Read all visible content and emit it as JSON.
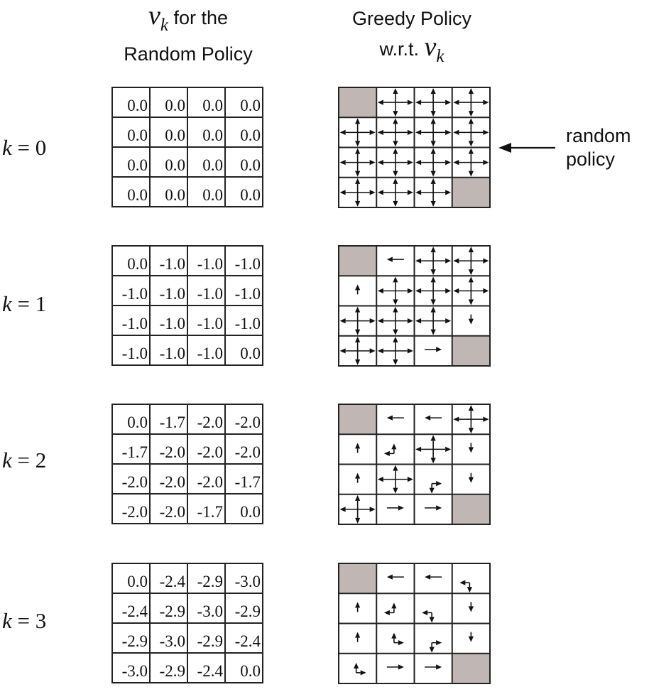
{
  "headers": {
    "left_symbol": "v",
    "left_subscript": "k",
    "left_line1": " for the",
    "left_line2": "Random Policy",
    "right_line1": "Greedy Policy",
    "right_line2": "w.r.t. ",
    "right_symbol": "v",
    "right_subscript": "k"
  },
  "note": {
    "line1": "random",
    "line2": "policy"
  },
  "colors": {
    "terminal": "#c0b7b5",
    "lines": "#222222"
  },
  "panels": [
    {
      "k_label": "k",
      "k_eq": " = 0",
      "values": [
        [
          "0.0",
          "0.0",
          "0.0",
          "0.0"
        ],
        [
          "0.0",
          "0.0",
          "0.0",
          "0.0"
        ],
        [
          "0.0",
          "0.0",
          "0.0",
          "0.0"
        ],
        [
          "0.0",
          "0.0",
          "0.0",
          "0.0"
        ]
      ],
      "policy": [
        [
          "T",
          "NESW",
          "NESW",
          "NESW"
        ],
        [
          "NESW",
          "NESW",
          "NESW",
          "NESW"
        ],
        [
          "NESW",
          "NESW",
          "NESW",
          "NESW"
        ],
        [
          "NESW",
          "NESW",
          "NESW",
          "T"
        ]
      ]
    },
    {
      "k_label": "k",
      "k_eq": " = 1",
      "values": [
        [
          "0.0",
          "-1.0",
          "-1.0",
          "-1.0"
        ],
        [
          "-1.0",
          "-1.0",
          "-1.0",
          "-1.0"
        ],
        [
          "-1.0",
          "-1.0",
          "-1.0",
          "-1.0"
        ],
        [
          "-1.0",
          "-1.0",
          "-1.0",
          "0.0"
        ]
      ],
      "policy": [
        [
          "T",
          "W",
          "NESW",
          "NESW"
        ],
        [
          "N",
          "NESW",
          "NESW",
          "NESW"
        ],
        [
          "NESW",
          "NESW",
          "NESW",
          "S"
        ],
        [
          "NESW",
          "NESW",
          "E",
          "T"
        ]
      ]
    },
    {
      "k_label": "k",
      "k_eq": " = 2",
      "values": [
        [
          "0.0",
          "-1.7",
          "-2.0",
          "-2.0"
        ],
        [
          "-1.7",
          "-2.0",
          "-2.0",
          "-2.0"
        ],
        [
          "-2.0",
          "-2.0",
          "-2.0",
          "-1.7"
        ],
        [
          "-2.0",
          "-2.0",
          "-1.7",
          "0.0"
        ]
      ],
      "policy": [
        [
          "T",
          "W",
          "W",
          "NESW"
        ],
        [
          "N",
          "NW",
          "NESW",
          "S"
        ],
        [
          "N",
          "NESW",
          "ES",
          "S"
        ],
        [
          "NESW",
          "E",
          "E",
          "T"
        ]
      ]
    },
    {
      "k_label": "k",
      "k_eq": " = 3",
      "values": [
        [
          "0.0",
          "-2.4",
          "-2.9",
          "-3.0"
        ],
        [
          "-2.4",
          "-2.9",
          "-3.0",
          "-2.9"
        ],
        [
          "-2.9",
          "-3.0",
          "-2.9",
          "-2.4"
        ],
        [
          "-3.0",
          "-2.9",
          "-2.4",
          "0.0"
        ]
      ],
      "policy": [
        [
          "T",
          "W",
          "W",
          "SW"
        ],
        [
          "N",
          "NW",
          "SW",
          "S"
        ],
        [
          "N",
          "NE",
          "ES",
          "S"
        ],
        [
          "NE",
          "E",
          "E",
          "T"
        ]
      ]
    }
  ]
}
